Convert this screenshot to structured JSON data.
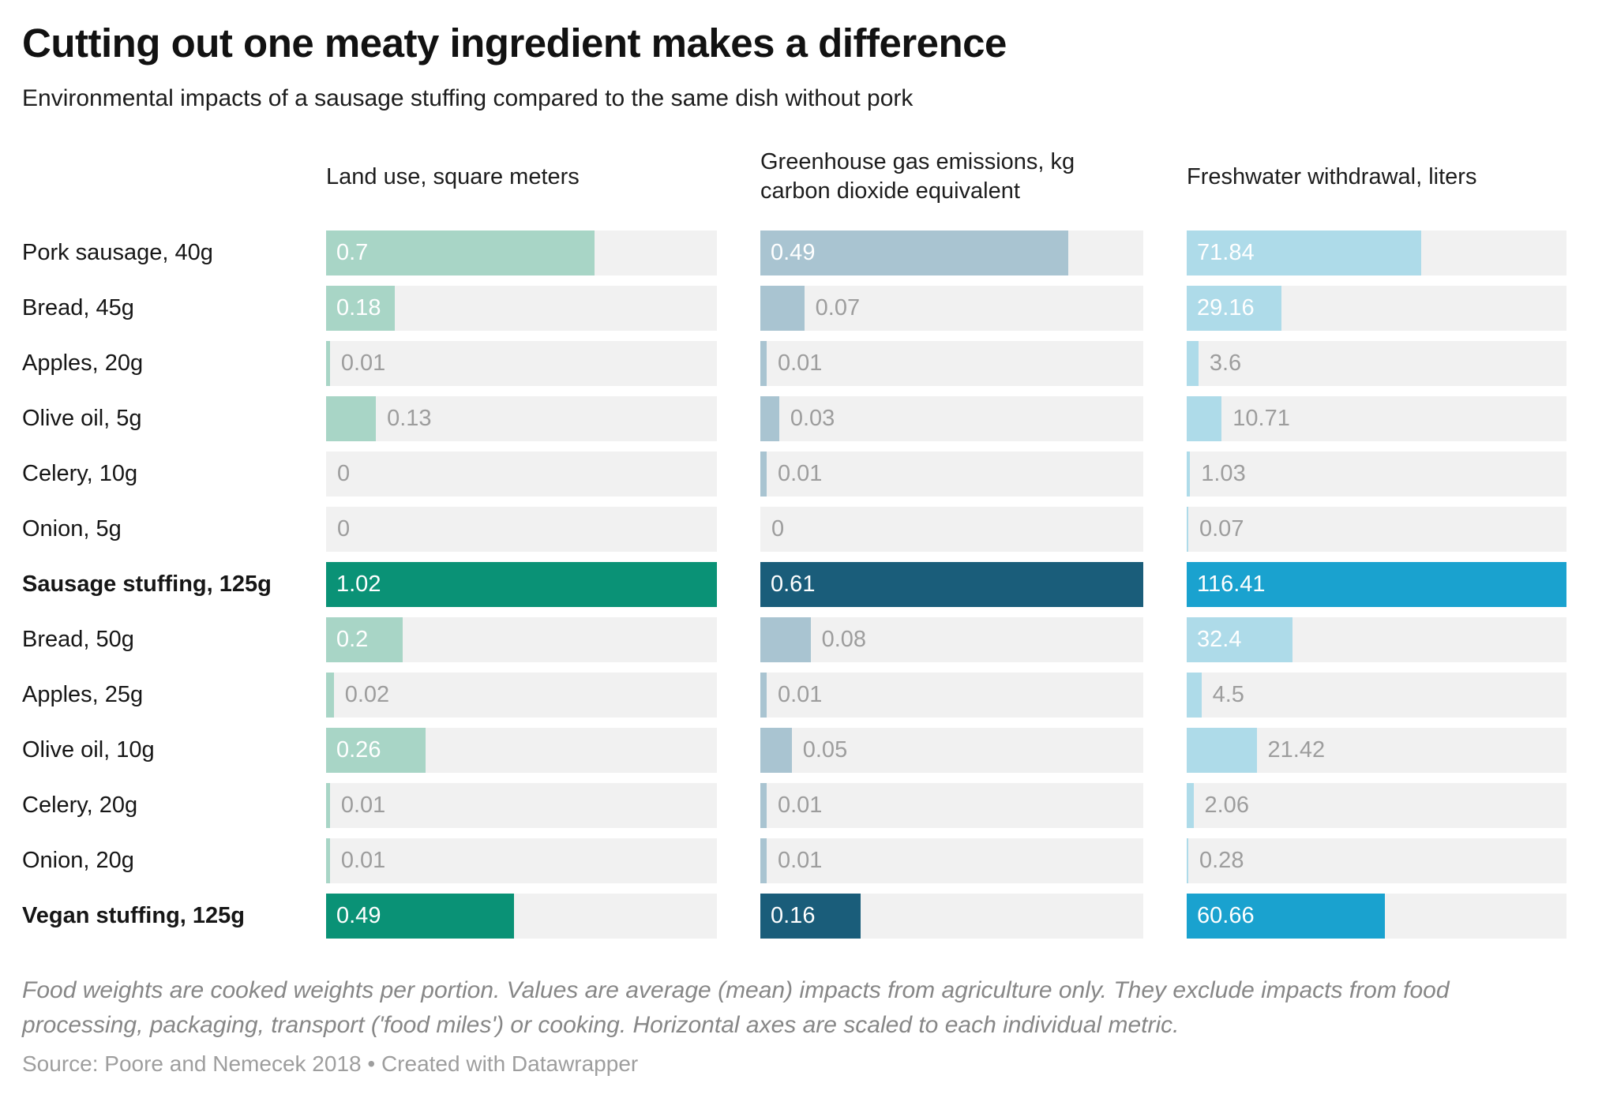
{
  "header": {
    "title": "Cutting out one meaty ingredient makes a difference",
    "subtitle": "Environmental impacts of a sausage stuffing compared to the same dish without pork"
  },
  "chart_data": {
    "type": "bar",
    "orientation": "horizontal",
    "layout": {
      "grid": false,
      "value_labels": "inside-if-fits-else-right",
      "axes": "Horizontal axes are scaled to each individual metric",
      "track_color": "#f1f1f1"
    },
    "metrics": [
      {
        "id": "land_use",
        "label": "Land use, square meters",
        "axis_max": 1.02,
        "color_normal": "#a8d5c6",
        "color_highlight": "#0a9276"
      },
      {
        "id": "ghg",
        "label": "Greenhouse gas emissions, kg carbon dioxide equivalent",
        "axis_max": 0.61,
        "color_normal": "#a9c4d1",
        "color_highlight": "#1a5d7a"
      },
      {
        "id": "freshwater",
        "label": "Freshwater withdrawal, liters",
        "axis_max": 116.41,
        "color_normal": "#aedbe9",
        "color_highlight": "#1aa2cf"
      }
    ],
    "rows": [
      {
        "label": "Pork sausage, 40g",
        "highlight": false,
        "values": [
          0.7,
          0.49,
          71.84
        ]
      },
      {
        "label": "Bread, 45g",
        "highlight": false,
        "values": [
          0.18,
          0.07,
          29.16
        ]
      },
      {
        "label": "Apples, 20g",
        "highlight": false,
        "values": [
          0.01,
          0.01,
          3.6
        ]
      },
      {
        "label": "Olive oil, 5g",
        "highlight": false,
        "values": [
          0.13,
          0.03,
          10.71
        ]
      },
      {
        "label": "Celery, 10g",
        "highlight": false,
        "values": [
          0,
          0.01,
          1.03
        ]
      },
      {
        "label": "Onion, 5g",
        "highlight": false,
        "values": [
          0,
          0,
          0.07
        ]
      },
      {
        "label": "Sausage stuffing, 125g",
        "highlight": true,
        "values": [
          1.02,
          0.61,
          116.41
        ]
      },
      {
        "label": "Bread, 50g",
        "highlight": false,
        "values": [
          0.2,
          0.08,
          32.4
        ]
      },
      {
        "label": "Apples, 25g",
        "highlight": false,
        "values": [
          0.02,
          0.01,
          4.5
        ]
      },
      {
        "label": "Olive oil, 10g",
        "highlight": false,
        "values": [
          0.26,
          0.05,
          21.42
        ]
      },
      {
        "label": "Celery, 20g",
        "highlight": false,
        "values": [
          0.01,
          0.01,
          2.06
        ]
      },
      {
        "label": "Onion, 20g",
        "highlight": false,
        "values": [
          0.01,
          0.01,
          0.28
        ]
      },
      {
        "label": "Vegan stuffing, 125g",
        "highlight": true,
        "values": [
          0.49,
          0.16,
          60.66
        ]
      }
    ]
  },
  "footer": {
    "note": "Food weights are cooked weights per portion. Values are average (mean) impacts from agriculture only. They exclude impacts from food processing, packaging, transport ('food miles') or cooking. Horizontal axes are scaled to each individual metric.",
    "source": "Source: Poore and Nemecek 2018 • Created with Datawrapper"
  }
}
